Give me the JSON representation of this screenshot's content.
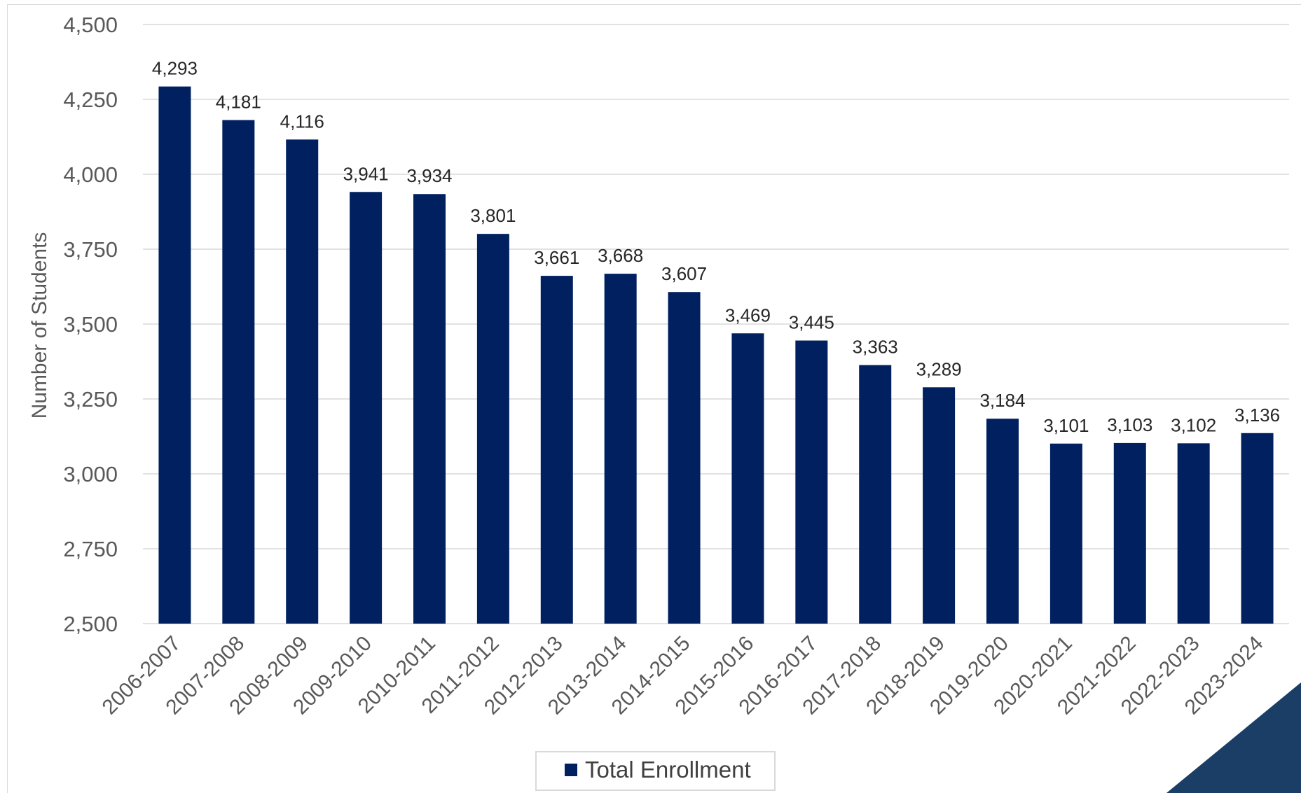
{
  "chart_data": {
    "type": "bar",
    "title": "",
    "xlabel": "",
    "ylabel": "Number of Students",
    "ylim": [
      2500,
      4500
    ],
    "yticks": [
      2500,
      2750,
      3000,
      3250,
      3500,
      3750,
      4000,
      4250,
      4500
    ],
    "ytick_labels": [
      "2,500",
      "2,750",
      "3,000",
      "3,250",
      "3,500",
      "3,750",
      "4,000",
      "4,250",
      "4,500"
    ],
    "categories": [
      "2006-2007",
      "2007-2008",
      "2008-2009",
      "2009-2010",
      "2010-2011",
      "2011-2012",
      "2012-2013",
      "2013-2014",
      "2014-2015",
      "2015-2016",
      "2016-2017",
      "2017-2018",
      "2018-2019",
      "2019-2020",
      "2020-2021",
      "2021-2022",
      "2022-2023",
      "2023-2024"
    ],
    "series": [
      {
        "name": "Total Enrollment",
        "color": "#002060",
        "values": [
          4293,
          4181,
          4116,
          3941,
          3934,
          3801,
          3661,
          3668,
          3607,
          3469,
          3445,
          3363,
          3289,
          3184,
          3101,
          3103,
          3102,
          3136
        ],
        "value_labels": [
          "4,293",
          "4,181",
          "4,116",
          "3,941",
          "3,934",
          "3,801",
          "3,661",
          "3,668",
          "3,607",
          "3,469",
          "3,445",
          "3,363",
          "3,289",
          "3,184",
          "3,101",
          "3,103",
          "3,102",
          "3,136"
        ]
      }
    ],
    "grid": true,
    "legend_position": "bottom-center",
    "colors": {
      "bar": "#002060",
      "gridline": "#d9d9d9",
      "corner_accent": "#1b3e66"
    }
  }
}
